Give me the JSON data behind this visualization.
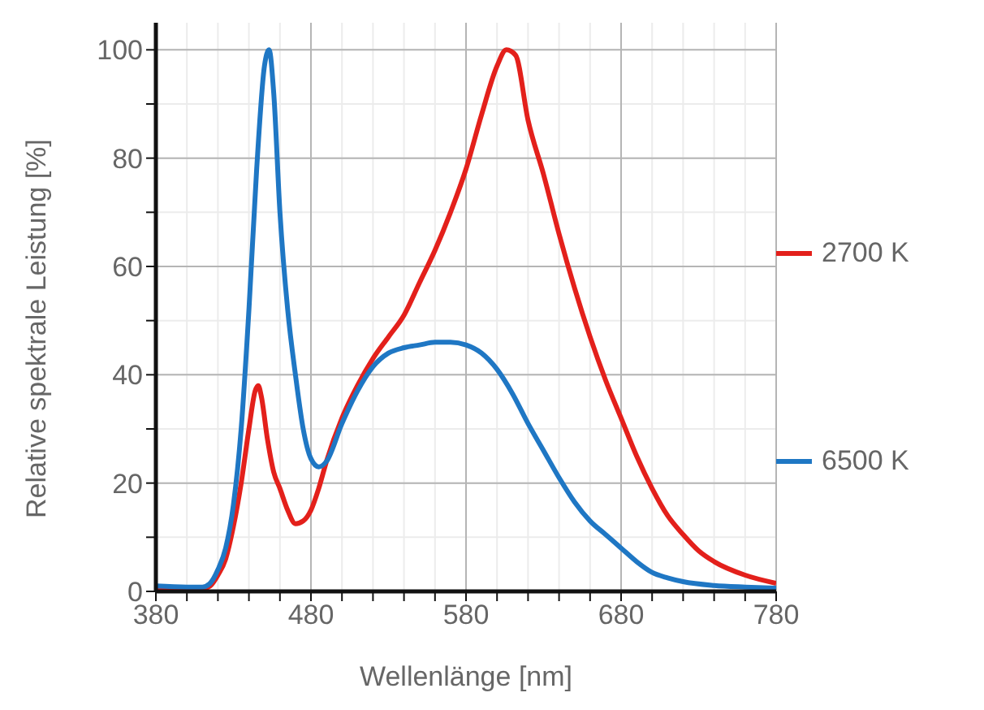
{
  "chart_data": {
    "type": "line",
    "xlabel": "Wellenlänge [nm]",
    "ylabel": "Relative spektrale Leistung [%]",
    "xlim": [
      380,
      780
    ],
    "xticks": [
      380,
      {
        "value": 400,
        "label": null
      },
      {
        "value": 420,
        "label": null
      },
      {
        "value": 440,
        "label": null
      },
      {
        "value": 460,
        "label": null
      },
      480,
      {
        "value": 500,
        "label": null
      },
      {
        "value": 520,
        "label": null
      },
      {
        "value": 540,
        "label": null
      },
      {
        "value": 560,
        "label": null
      },
      580,
      {
        "value": 600,
        "label": null
      },
      {
        "value": 620,
        "label": null
      },
      {
        "value": 640,
        "label": null
      },
      {
        "value": 660,
        "label": null
      },
      680,
      {
        "value": 700,
        "label": null
      },
      {
        "value": 720,
        "label": null
      },
      {
        "value": 740,
        "label": null
      },
      {
        "value": 760,
        "label": null
      },
      780
    ],
    "ylim": [
      0,
      105
    ],
    "yticks": [
      0,
      {
        "value": 10,
        "label": null
      },
      20,
      {
        "value": 30,
        "label": null
      },
      40,
      {
        "value": 50,
        "label": null
      },
      60,
      {
        "value": 70,
        "label": null
      },
      80,
      {
        "value": 90,
        "label": null
      },
      100
    ],
    "grid": true,
    "legend": "right",
    "marker": "none",
    "line_style": "solid",
    "series": [
      {
        "name": "2700 K",
        "color": "#e3201b",
        "x": [
          380,
          400,
          410,
          415,
          420,
          425,
          430,
          435,
          440,
          444,
          446,
          448,
          452,
          456,
          460,
          465,
          470,
          475,
          480,
          485,
          490,
          500,
          510,
          520,
          530,
          540,
          550,
          560,
          570,
          580,
          590,
          600,
          606,
          612,
          620,
          630,
          640,
          650,
          660,
          670,
          680,
          690,
          700,
          710,
          720,
          730,
          740,
          760,
          780
        ],
        "values": [
          0.5,
          0.5,
          0.5,
          1,
          3,
          6,
          12,
          20,
          30,
          37,
          38,
          36,
          28,
          22,
          19,
          15,
          12.5,
          13,
          15,
          19,
          24,
          32,
          38,
          43,
          47,
          51,
          57,
          63,
          70,
          78,
          88,
          97,
          100,
          99,
          87,
          77,
          66,
          56,
          47,
          39,
          32,
          25,
          19,
          14,
          10.5,
          7.5,
          5.5,
          3,
          1.5
        ]
      },
      {
        "name": "6500 K",
        "color": "#1f77c4",
        "x": [
          380,
          400,
          410,
          415,
          420,
          425,
          430,
          435,
          440,
          445,
          450,
          453,
          456,
          460,
          465,
          470,
          475,
          480,
          485,
          490,
          500,
          510,
          520,
          530,
          540,
          550,
          560,
          570,
          580,
          590,
          600,
          610,
          620,
          630,
          640,
          650,
          660,
          670,
          680,
          690,
          700,
          710,
          720,
          740,
          760,
          780
        ],
        "values": [
          1,
          0.8,
          0.8,
          1.5,
          4,
          8,
          16,
          30,
          52,
          78,
          97,
          100,
          92,
          70,
          52,
          40,
          30,
          24.5,
          23,
          24,
          31,
          37,
          41.5,
          44,
          45,
          45.5,
          46,
          46,
          45.5,
          44,
          41,
          36.5,
          31,
          26,
          21,
          16.5,
          13,
          10.5,
          8,
          5.5,
          3.5,
          2.5,
          1.8,
          1.1,
          0.8,
          0.6
        ]
      }
    ]
  }
}
